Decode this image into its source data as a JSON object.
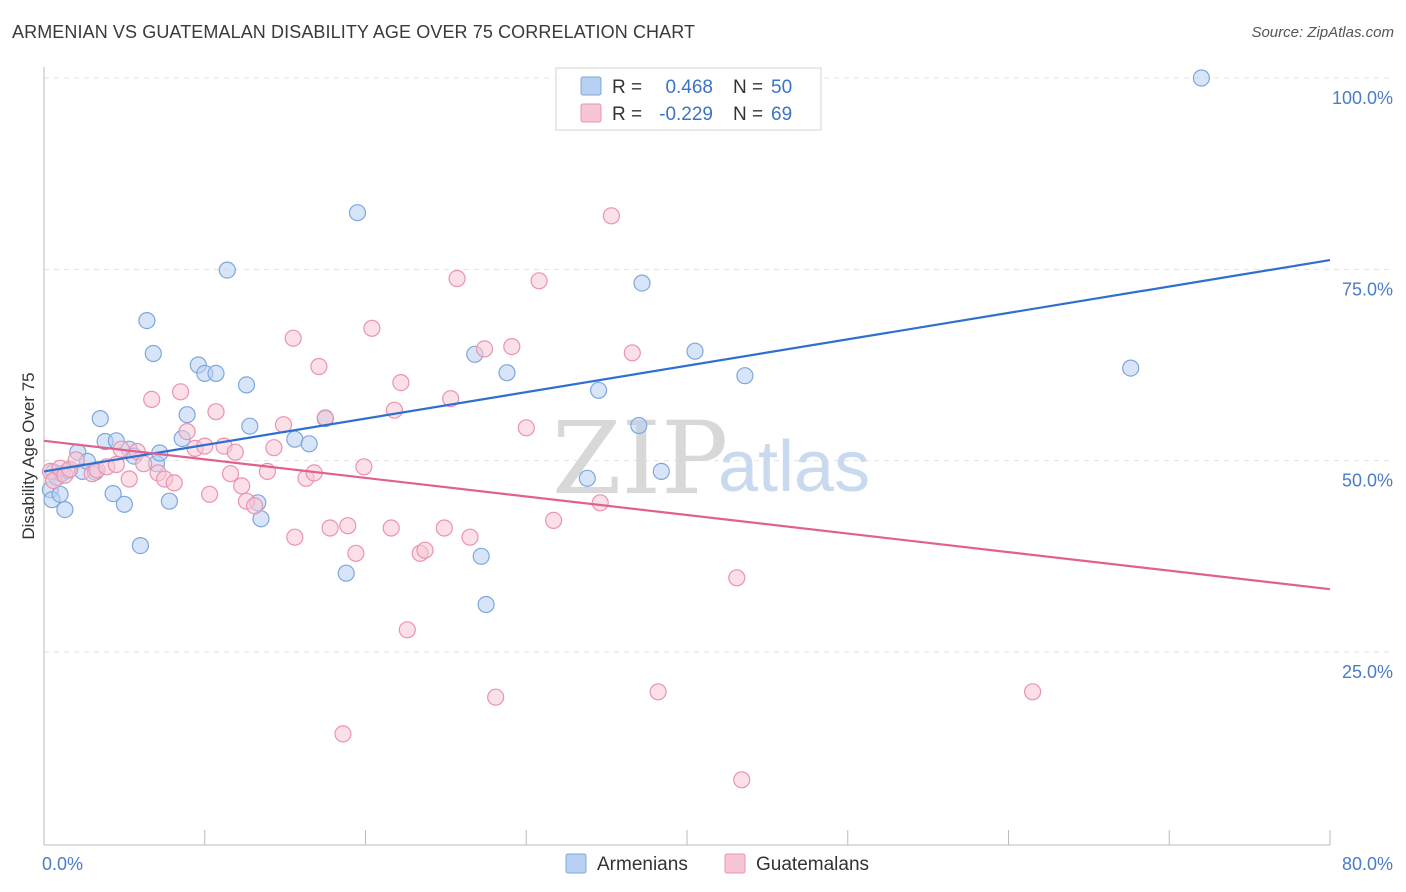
{
  "header": {
    "title": "ARMENIAN VS GUATEMALAN DISABILITY AGE OVER 75 CORRELATION CHART",
    "source": "Source: ZipAtlas.com"
  },
  "watermark": {
    "zip": "ZIP",
    "atlas": "atlas"
  },
  "colors": {
    "armenian_fill": "#b8d0f2",
    "armenian_stroke": "#7ea7dd",
    "armenian_line": "#2f6fce",
    "guatemalan_fill": "#f7c6d5",
    "guatemalan_stroke": "#ea93b0",
    "guatemalan_line": "#e0608e",
    "grid": "#e3e3e3",
    "tick_label": "#4a7cc7"
  },
  "stats": [
    {
      "r_label": "R =",
      "r_value": "0.468",
      "n_label": "N =",
      "n_value": "50"
    },
    {
      "r_label": "R =",
      "r_value": "-0.229",
      "n_label": "N =",
      "n_value": "69"
    }
  ],
  "chart_data": {
    "type": "scatter",
    "title": "ARMENIAN VS GUATEMALAN DISABILITY AGE OVER 75 CORRELATION CHART",
    "xlabel": "",
    "ylabel": "Disability Age Over 75",
    "xlim": [
      0,
      80
    ],
    "ylim": [
      0,
      102
    ],
    "x_tick_labels": [
      "0.0%",
      "80.0%"
    ],
    "y_ticks": [
      25,
      50,
      75,
      100
    ],
    "y_tick_labels": [
      "25.0%",
      "50.0%",
      "75.0%",
      "100.0%"
    ],
    "grid": true,
    "legend_position": "bottom",
    "series": [
      {
        "name": "Armenians",
        "r": 0.468,
        "n": 50,
        "trend": {
          "x": [
            0,
            80
          ],
          "y": [
            48.6,
            76.2
          ]
        },
        "points": [
          [
            0.4,
            46.2
          ],
          [
            0.5,
            44.9
          ],
          [
            0.6,
            48.5
          ],
          [
            0.8,
            47.8
          ],
          [
            1.0,
            45.6
          ],
          [
            1.1,
            48.3
          ],
          [
            1.3,
            43.6
          ],
          [
            1.5,
            48.7
          ],
          [
            2.1,
            51.1
          ],
          [
            2.4,
            48.6
          ],
          [
            2.7,
            49.9
          ],
          [
            3.2,
            48.5
          ],
          [
            3.5,
            55.5
          ],
          [
            3.8,
            52.5
          ],
          [
            4.3,
            45.7
          ],
          [
            4.5,
            52.6
          ],
          [
            5.0,
            44.3
          ],
          [
            5.3,
            51.5
          ],
          [
            5.6,
            50.6
          ],
          [
            6.0,
            38.9
          ],
          [
            6.4,
            68.3
          ],
          [
            6.8,
            64.0
          ],
          [
            7.0,
            49.6
          ],
          [
            7.2,
            51.0
          ],
          [
            7.8,
            44.7
          ],
          [
            8.6,
            52.9
          ],
          [
            8.9,
            56.0
          ],
          [
            9.6,
            62.5
          ],
          [
            10.0,
            61.4
          ],
          [
            10.7,
            61.4
          ],
          [
            11.4,
            74.9
          ],
          [
            12.6,
            59.9
          ],
          [
            12.8,
            54.5
          ],
          [
            13.3,
            44.5
          ],
          [
            13.5,
            42.4
          ],
          [
            15.6,
            52.8
          ],
          [
            16.5,
            52.2
          ],
          [
            17.5,
            55.5
          ],
          [
            18.8,
            35.3
          ],
          [
            19.5,
            82.4
          ],
          [
            26.8,
            63.9
          ],
          [
            27.2,
            37.5
          ],
          [
            27.5,
            31.2
          ],
          [
            28.8,
            61.5
          ],
          [
            33.8,
            47.7
          ],
          [
            34.5,
            59.2
          ],
          [
            37.0,
            54.6
          ],
          [
            37.2,
            73.2
          ],
          [
            38.4,
            48.6
          ],
          [
            40.5,
            64.3
          ],
          [
            43.6,
            61.1
          ],
          [
            67.6,
            62.1
          ],
          [
            72.0,
            100.0
          ]
        ]
      },
      {
        "name": "Guatemalans",
        "r": -0.229,
        "n": 69,
        "trend": {
          "x": [
            0,
            80
          ],
          "y": [
            52.6,
            33.2
          ]
        },
        "points": [
          [
            0.4,
            48.6
          ],
          [
            0.6,
            47.4
          ],
          [
            1.0,
            49.0
          ],
          [
            1.3,
            48.1
          ],
          [
            1.6,
            48.9
          ],
          [
            2.0,
            50.1
          ],
          [
            3.0,
            48.3
          ],
          [
            3.3,
            48.8
          ],
          [
            3.9,
            49.2
          ],
          [
            4.5,
            49.5
          ],
          [
            4.8,
            51.5
          ],
          [
            5.3,
            47.6
          ],
          [
            5.8,
            51.2
          ],
          [
            6.2,
            49.6
          ],
          [
            6.7,
            58.0
          ],
          [
            7.1,
            48.4
          ],
          [
            7.5,
            47.6
          ],
          [
            8.1,
            47.1
          ],
          [
            8.5,
            59.0
          ],
          [
            8.9,
            53.8
          ],
          [
            9.4,
            51.6
          ],
          [
            10.0,
            51.9
          ],
          [
            10.3,
            45.6
          ],
          [
            10.7,
            56.4
          ],
          [
            11.2,
            51.9
          ],
          [
            11.6,
            48.3
          ],
          [
            11.9,
            51.1
          ],
          [
            12.3,
            46.7
          ],
          [
            12.6,
            44.7
          ],
          [
            13.1,
            44.1
          ],
          [
            13.9,
            48.6
          ],
          [
            14.3,
            51.7
          ],
          [
            14.9,
            54.7
          ],
          [
            15.5,
            66.0
          ],
          [
            15.6,
            40.0
          ],
          [
            16.3,
            47.7
          ],
          [
            16.8,
            48.4
          ],
          [
            17.1,
            62.3
          ],
          [
            17.5,
            55.6
          ],
          [
            17.8,
            41.2
          ],
          [
            18.6,
            14.3
          ],
          [
            18.9,
            41.5
          ],
          [
            19.4,
            37.9
          ],
          [
            19.9,
            49.2
          ],
          [
            20.4,
            67.3
          ],
          [
            21.6,
            41.2
          ],
          [
            21.8,
            56.6
          ],
          [
            22.2,
            60.2
          ],
          [
            22.6,
            27.9
          ],
          [
            23.4,
            37.9
          ],
          [
            23.7,
            38.3
          ],
          [
            24.9,
            41.2
          ],
          [
            25.3,
            58.1
          ],
          [
            25.7,
            73.8
          ],
          [
            26.5,
            40.0
          ],
          [
            27.4,
            64.6
          ],
          [
            28.1,
            19.1
          ],
          [
            29.1,
            64.9
          ],
          [
            30.0,
            54.3
          ],
          [
            30.8,
            73.5
          ],
          [
            31.7,
            42.2
          ],
          [
            34.6,
            44.5
          ],
          [
            35.3,
            82.0
          ],
          [
            36.6,
            64.1
          ],
          [
            38.2,
            19.8
          ],
          [
            43.1,
            34.7
          ],
          [
            43.4,
            8.3
          ],
          [
            61.5,
            19.8
          ]
        ]
      }
    ]
  }
}
